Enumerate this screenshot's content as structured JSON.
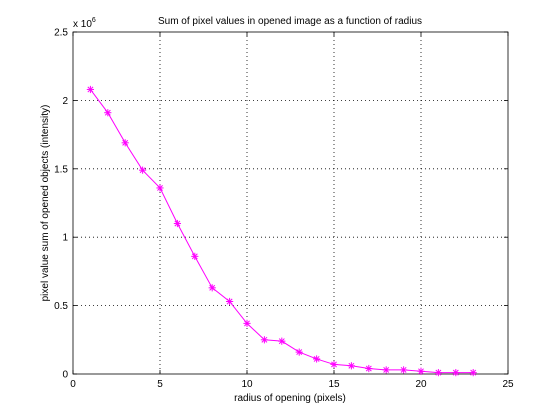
{
  "chart_data": {
    "type": "line",
    "title": "Sum of pixel values in opened image as a function of radius",
    "xlabel": "radius of opening (pixels)",
    "ylabel": "pixel value sum of opened objects (intensity)",
    "y_multiplier_base": "x 10",
    "y_multiplier_exponent": "6",
    "xlim": [
      0,
      25
    ],
    "ylim": [
      0,
      2.5
    ],
    "x_ticks": [
      0,
      5,
      10,
      15,
      20,
      25
    ],
    "x_tick_labels": [
      "0",
      "5",
      "10",
      "15",
      "20",
      "25"
    ],
    "y_ticks": [
      0,
      0.5,
      1,
      1.5,
      2,
      2.5
    ],
    "y_tick_labels": [
      "0",
      "0.5",
      "1",
      "1.5",
      "2",
      "2.5"
    ],
    "grid": true,
    "series": [
      {
        "color": "#ff00ff",
        "marker": "asterisk",
        "x": [
          1,
          2,
          3,
          4,
          5,
          6,
          7,
          8,
          9,
          10,
          11,
          12,
          13,
          14,
          15,
          16,
          17,
          18,
          19,
          20,
          21,
          22,
          23
        ],
        "y": [
          2.08,
          1.91,
          1.69,
          1.49,
          1.36,
          1.1,
          0.86,
          0.63,
          0.53,
          0.37,
          0.25,
          0.24,
          0.16,
          0.11,
          0.07,
          0.06,
          0.04,
          0.03,
          0.03,
          0.02,
          0.01,
          0.01,
          0.01
        ]
      }
    ]
  }
}
